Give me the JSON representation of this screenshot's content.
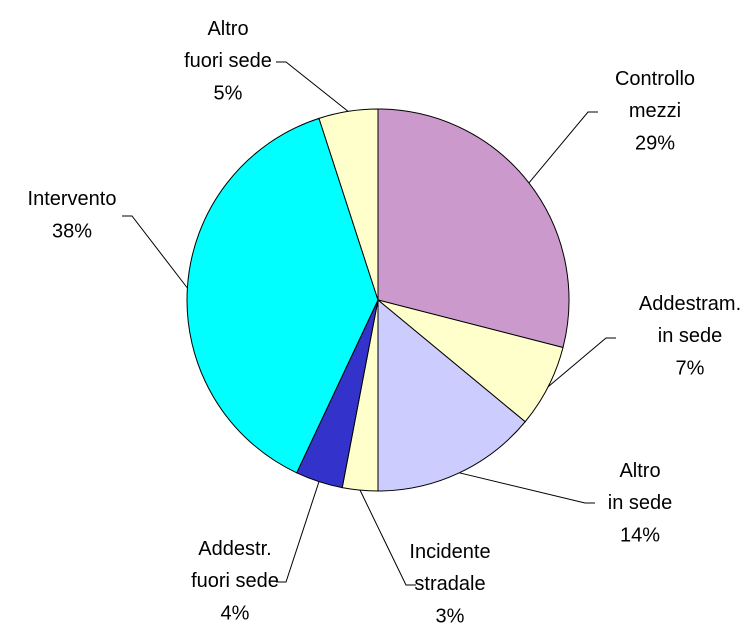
{
  "chart_data": {
    "type": "pie",
    "categories": [
      "Controllo\nmezzi",
      "Addestram.\nin sede",
      "Altro\nin sede",
      "Incidente\nstradale",
      "Addestr.\nfuori sede",
      "Intervento",
      "Altro\nfuori sede"
    ],
    "values": [
      29,
      7,
      14,
      3,
      4,
      38,
      5
    ],
    "value_labels": [
      "29%",
      "7%",
      "14%",
      "3%",
      "4%",
      "38%",
      "5%"
    ],
    "colors": [
      "#cc99cc",
      "#ffffcc",
      "#ccccff",
      "#ffffcc",
      "#3333cc",
      "#00ffff",
      "#ffffcc"
    ]
  }
}
